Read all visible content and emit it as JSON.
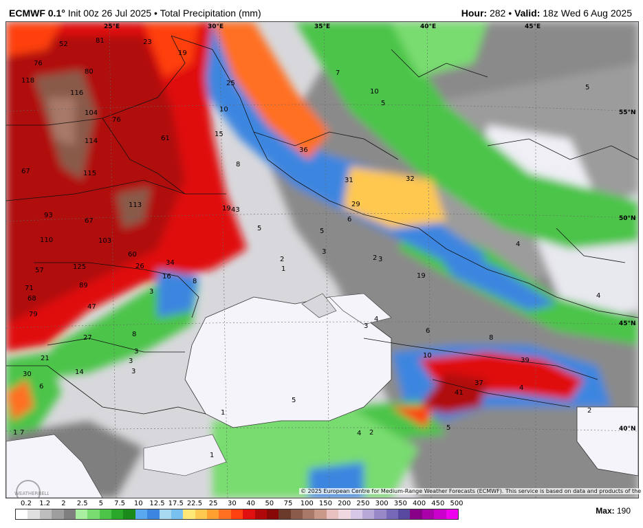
{
  "header": {
    "model": "ECMWF 0.1",
    "degree": "°",
    "init": "Init 00z 26 Jul 2025",
    "separator": "•",
    "product": "Total Precipitation (mm)",
    "hour_label": "Hour:",
    "hour_value": "282",
    "valid_label": "Valid:",
    "valid_value": "18z Wed 6 Aug 2025"
  },
  "map": {
    "longitude_labels": [
      "25°E",
      "30°E",
      "35°E",
      "40°E",
      "45°E"
    ],
    "latitude_labels": [
      "55°N",
      "50°N",
      "45°N",
      "40°N"
    ],
    "values": [
      {
        "v": "52"
      },
      {
        "v": "81"
      },
      {
        "v": "23"
      },
      {
        "v": "19"
      },
      {
        "v": "76"
      },
      {
        "v": "80"
      },
      {
        "v": "118"
      },
      {
        "v": "116"
      },
      {
        "v": "104"
      },
      {
        "v": "76"
      },
      {
        "v": "114"
      },
      {
        "v": "61"
      },
      {
        "v": "67"
      },
      {
        "v": "115"
      },
      {
        "v": "113"
      },
      {
        "v": "93"
      },
      {
        "v": "67"
      },
      {
        "v": "110"
      },
      {
        "v": "103"
      },
      {
        "v": "60"
      },
      {
        "v": "26"
      },
      {
        "v": "34"
      },
      {
        "v": "57"
      },
      {
        "v": "125"
      },
      {
        "v": "71"
      },
      {
        "v": "89"
      },
      {
        "v": "68"
      },
      {
        "v": "47"
      },
      {
        "v": "79"
      },
      {
        "v": "27"
      },
      {
        "v": "21"
      },
      {
        "v": "30"
      },
      {
        "v": "14"
      },
      {
        "v": "6"
      },
      {
        "v": "25"
      },
      {
        "v": "10"
      },
      {
        "v": "15"
      },
      {
        "v": "8"
      },
      {
        "v": "19"
      },
      {
        "v": "43"
      },
      {
        "v": "5"
      },
      {
        "v": "16"
      },
      {
        "v": "8"
      },
      {
        "v": "3"
      },
      {
        "v": "8"
      },
      {
        "v": "3"
      },
      {
        "v": "3"
      },
      {
        "v": "3"
      },
      {
        "v": "36"
      },
      {
        "v": "31"
      },
      {
        "v": "32"
      },
      {
        "v": "29"
      },
      {
        "v": "6"
      },
      {
        "v": "10"
      },
      {
        "v": "5"
      },
      {
        "v": "7"
      },
      {
        "v": "2"
      },
      {
        "v": "1"
      },
      {
        "v": "5"
      },
      {
        "v": "3"
      },
      {
        "v": "2"
      },
      {
        "v": "3"
      },
      {
        "v": "19"
      },
      {
        "v": "4"
      },
      {
        "v": "3"
      },
      {
        "v": "4"
      },
      {
        "v": "6"
      },
      {
        "v": "8"
      },
      {
        "v": "10"
      },
      {
        "v": "39"
      },
      {
        "v": "37"
      },
      {
        "v": "41"
      },
      {
        "v": "4"
      },
      {
        "v": "2"
      },
      {
        "v": "5"
      },
      {
        "v": "1"
      },
      {
        "v": "2"
      },
      {
        "v": "4"
      },
      {
        "v": "4"
      },
      {
        "v": "1"
      },
      {
        "v": "5"
      },
      {
        "v": "7"
      },
      {
        "v": "1"
      },
      {
        "v": "5"
      }
    ]
  },
  "copyright": "© 2025 European Centre for Medium-Range Weather Forecasts (ECMWF). This service is based on data and products of the ECMWF.",
  "legend": {
    "ticks": [
      "0.2",
      "1.2",
      "2",
      "2.5",
      "5",
      "7.5",
      "10",
      "12.5",
      "17.5",
      "22.5",
      "25",
      "30",
      "40",
      "50",
      "75",
      "100",
      "150",
      "200",
      "250",
      "300",
      "350",
      "400",
      "450",
      "500"
    ],
    "colors": [
      "#ffffff",
      "#e0e0e0",
      "#bdbdbd",
      "#9e9e9e",
      "#7f7f7f",
      "#a8f0a0",
      "#78dc70",
      "#4cc448",
      "#2aa82a",
      "#1a8a1a",
      "#5aa8f0",
      "#3c86e0",
      "#a8d8f0",
      "#78c0f0",
      "#ffe878",
      "#ffc850",
      "#ffa030",
      "#ff7020",
      "#ff4010",
      "#e01010",
      "#b00808",
      "#880808",
      "#6a3a2a",
      "#8a5a4a",
      "#a87868",
      "#c89888",
      "#e8c0c0",
      "#f0d8e0",
      "#d8c8e8",
      "#b8a8d8",
      "#9888c8",
      "#7868b8",
      "#5848a0",
      "#880088",
      "#aa00aa",
      "#cc00cc",
      "#ee00ee"
    ]
  },
  "max": {
    "label": "Max:",
    "value": "190"
  },
  "logo_text": "WEATHERBELL"
}
